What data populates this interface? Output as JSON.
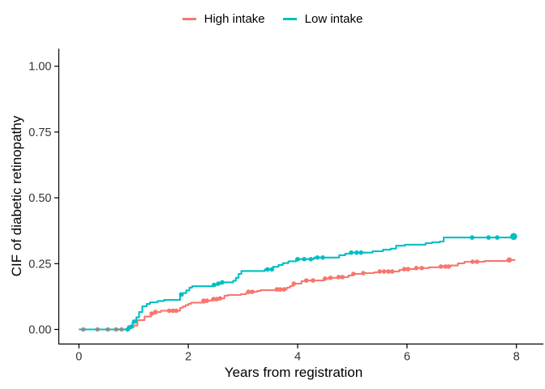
{
  "legend": {
    "items": [
      {
        "label": "High intake",
        "color": "#F8766D"
      },
      {
        "label": "Low intake",
        "color": "#00BFC4"
      }
    ]
  },
  "chart_data": {
    "type": "line",
    "subtype": "step-cumulative-incidence",
    "title": "",
    "xlabel": "Years from registration",
    "ylabel": "CIF of diabetic retinopathy",
    "xlim": [
      0,
      8
    ],
    "ylim": [
      0,
      1
    ],
    "grid": "off",
    "legend_position": "top-center",
    "x_tick_values": [
      0,
      2,
      4,
      6,
      8
    ],
    "x_tick_labels": [
      "0",
      "2",
      "4",
      "6",
      "8"
    ],
    "y_tick_values": [
      0,
      0.25,
      0.5,
      0.75,
      1.0
    ],
    "y_tick_labels": [
      "0.00",
      "0.25",
      "0.50",
      "0.75",
      "1.00"
    ],
    "axis_color": "#000000",
    "tick_label_color": "#333333",
    "series": [
      {
        "name": "High intake",
        "color": "#F8766D",
        "end_time": 7.98,
        "final_value": 0.264,
        "steps": [
          [
            0,
            0
          ],
          [
            0.93,
            0.008
          ],
          [
            1.0,
            0.015
          ],
          [
            1.07,
            0.035
          ],
          [
            1.2,
            0.049
          ],
          [
            1.32,
            0.06
          ],
          [
            1.38,
            0.066
          ],
          [
            1.5,
            0.071
          ],
          [
            1.85,
            0.082
          ],
          [
            1.9,
            0.087
          ],
          [
            1.95,
            0.092
          ],
          [
            2.0,
            0.097
          ],
          [
            2.05,
            0.102
          ],
          [
            2.3,
            0.109
          ],
          [
            2.42,
            0.112
          ],
          [
            2.45,
            0.115
          ],
          [
            2.6,
            0.118
          ],
          [
            2.66,
            0.128
          ],
          [
            2.72,
            0.131
          ],
          [
            2.96,
            0.134
          ],
          [
            3.06,
            0.139
          ],
          [
            3.13,
            0.143
          ],
          [
            3.26,
            0.146
          ],
          [
            3.32,
            0.149
          ],
          [
            3.6,
            0.152
          ],
          [
            3.8,
            0.159
          ],
          [
            3.86,
            0.165
          ],
          [
            3.92,
            0.174
          ],
          [
            4.07,
            0.183
          ],
          [
            4.13,
            0.186
          ],
          [
            4.48,
            0.193
          ],
          [
            4.56,
            0.196
          ],
          [
            4.74,
            0.199
          ],
          [
            4.93,
            0.205
          ],
          [
            5.0,
            0.211
          ],
          [
            5.18,
            0.214
          ],
          [
            5.4,
            0.217
          ],
          [
            5.48,
            0.22
          ],
          [
            5.86,
            0.226
          ],
          [
            5.94,
            0.229
          ],
          [
            6.16,
            0.233
          ],
          [
            6.4,
            0.236
          ],
          [
            6.6,
            0.239
          ],
          [
            6.8,
            0.243
          ],
          [
            6.93,
            0.251
          ],
          [
            7.05,
            0.257
          ],
          [
            7.42,
            0.26
          ],
          [
            7.83,
            0.264
          ]
        ],
        "censor_marks": [
          [
            0.08,
            0
          ],
          [
            0.34,
            0
          ],
          [
            0.53,
            0
          ],
          [
            0.68,
            0
          ],
          [
            0.78,
            0
          ],
          [
            1.33,
            0.06
          ],
          [
            1.4,
            0.066
          ],
          [
            1.65,
            0.071
          ],
          [
            1.72,
            0.071
          ],
          [
            1.78,
            0.071
          ],
          [
            2.28,
            0.109
          ],
          [
            2.34,
            0.109
          ],
          [
            2.46,
            0.115
          ],
          [
            2.52,
            0.115
          ],
          [
            2.58,
            0.118
          ],
          [
            3.1,
            0.143
          ],
          [
            3.17,
            0.143
          ],
          [
            3.62,
            0.152
          ],
          [
            3.68,
            0.152
          ],
          [
            3.75,
            0.152
          ],
          [
            3.93,
            0.174
          ],
          [
            4.16,
            0.186
          ],
          [
            4.28,
            0.186
          ],
          [
            4.5,
            0.193
          ],
          [
            4.6,
            0.196
          ],
          [
            4.75,
            0.199
          ],
          [
            4.82,
            0.199
          ],
          [
            5.02,
            0.211
          ],
          [
            5.2,
            0.214
          ],
          [
            5.5,
            0.22
          ],
          [
            5.58,
            0.22
          ],
          [
            5.66,
            0.22
          ],
          [
            5.73,
            0.22
          ],
          [
            5.95,
            0.229
          ],
          [
            6.02,
            0.229
          ],
          [
            6.17,
            0.233
          ],
          [
            6.27,
            0.233
          ],
          [
            6.62,
            0.239
          ],
          [
            6.7,
            0.239
          ],
          [
            6.76,
            0.239
          ],
          [
            7.2,
            0.257
          ],
          [
            7.28,
            0.257
          ]
        ],
        "end_marker": {
          "t": 7.87,
          "v": 0.264,
          "r": 3.3
        }
      },
      {
        "name": "Low intake",
        "color": "#00BFC4",
        "end_time": 8.0,
        "final_value": 0.353,
        "steps": [
          [
            0,
            0
          ],
          [
            0.9,
            0.012
          ],
          [
            0.98,
            0.026
          ],
          [
            1.05,
            0.046
          ],
          [
            1.1,
            0.066
          ],
          [
            1.16,
            0.088
          ],
          [
            1.24,
            0.097
          ],
          [
            1.3,
            0.103
          ],
          [
            1.44,
            0.108
          ],
          [
            1.56,
            0.112
          ],
          [
            1.85,
            0.128
          ],
          [
            1.9,
            0.138
          ],
          [
            1.96,
            0.148
          ],
          [
            2.02,
            0.159
          ],
          [
            2.07,
            0.164
          ],
          [
            2.46,
            0.169
          ],
          [
            2.52,
            0.174
          ],
          [
            2.6,
            0.179
          ],
          [
            2.82,
            0.185
          ],
          [
            2.87,
            0.196
          ],
          [
            2.92,
            0.211
          ],
          [
            2.97,
            0.222
          ],
          [
            3.4,
            0.228
          ],
          [
            3.55,
            0.238
          ],
          [
            3.65,
            0.245
          ],
          [
            3.73,
            0.252
          ],
          [
            3.83,
            0.259
          ],
          [
            3.97,
            0.267
          ],
          [
            4.3,
            0.273
          ],
          [
            4.76,
            0.282
          ],
          [
            4.87,
            0.288
          ],
          [
            4.95,
            0.292
          ],
          [
            5.37,
            0.297
          ],
          [
            5.56,
            0.303
          ],
          [
            5.7,
            0.307
          ],
          [
            5.8,
            0.318
          ],
          [
            5.96,
            0.322
          ],
          [
            6.34,
            0.328
          ],
          [
            6.46,
            0.331
          ],
          [
            6.6,
            0.334
          ],
          [
            6.67,
            0.349
          ],
          [
            7.9,
            0.353
          ]
        ],
        "censor_marks": [
          [
            0.89,
            0
          ],
          [
            0.95,
            0.01
          ],
          [
            1.01,
            0.03
          ],
          [
            1.87,
            0.133
          ],
          [
            2.47,
            0.169
          ],
          [
            2.55,
            0.174
          ],
          [
            2.62,
            0.179
          ],
          [
            3.45,
            0.228
          ],
          [
            3.53,
            0.228
          ],
          [
            4.0,
            0.267
          ],
          [
            4.12,
            0.267
          ],
          [
            4.24,
            0.267
          ],
          [
            4.36,
            0.273
          ],
          [
            4.46,
            0.273
          ],
          [
            4.98,
            0.292
          ],
          [
            5.08,
            0.292
          ],
          [
            5.16,
            0.292
          ],
          [
            7.19,
            0.349
          ],
          [
            7.49,
            0.349
          ],
          [
            7.65,
            0.349
          ]
        ],
        "end_marker": {
          "t": 7.95,
          "v": 0.353,
          "r": 4.3
        }
      }
    ]
  }
}
